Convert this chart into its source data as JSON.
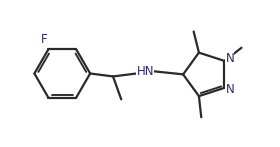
{
  "bg_color": "#ffffff",
  "line_color": "#2a2a2a",
  "atom_color": "#2a2a6a",
  "line_width": 1.6,
  "font_size": 8.5,
  "figsize": [
    2.8,
    1.47
  ],
  "dpi": 100,
  "xlim": [
    0.0,
    9.5
  ],
  "ylim": [
    0.5,
    5.0
  ]
}
